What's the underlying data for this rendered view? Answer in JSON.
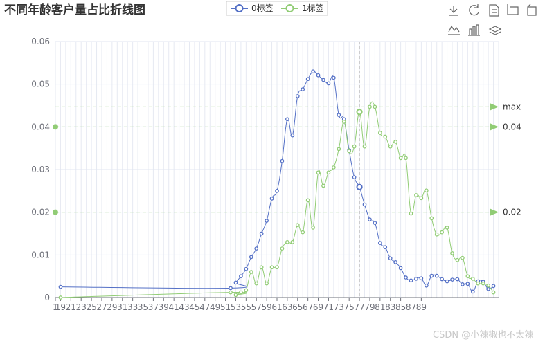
{
  "chart_data": {
    "type": "line",
    "title": "不同年龄客户量占比折线图",
    "x_tick_labels": [
      "1",
      "19",
      "21",
      "23",
      "25",
      "27",
      "29",
      "31",
      "33",
      "35",
      "37",
      "39",
      "41",
      "43",
      "45",
      "47",
      "49",
      "51",
      "53",
      "55",
      "57",
      "59",
      "61",
      "63",
      "65",
      "67",
      "69",
      "71",
      "73",
      "75",
      "77",
      "79",
      "81",
      "83",
      "85",
      "87",
      "89"
    ],
    "y_tick_labels": [
      "0",
      "0.01",
      "0.02",
      "0.03",
      "0.04",
      "0.05",
      "0.06"
    ],
    "ylim": [
      0,
      0.06
    ],
    "grid": true,
    "legend_position": "top-center",
    "series": [
      {
        "name": "0标签",
        "color": "#5470c6",
        "points": [
          [
            1,
            0.0025
          ],
          [
            34,
            0.0022
          ],
          [
            35,
            0.0035
          ],
          [
            36,
            0.005
          ],
          [
            37,
            0.0067
          ],
          [
            38,
            0.0095
          ],
          [
            39,
            0.0115
          ],
          [
            40,
            0.015
          ],
          [
            41,
            0.018
          ],
          [
            42,
            0.0232
          ],
          [
            43,
            0.025
          ],
          [
            44,
            0.032
          ],
          [
            45,
            0.0418
          ],
          [
            46,
            0.038
          ],
          [
            47,
            0.0472
          ],
          [
            48,
            0.0488
          ],
          [
            49,
            0.0512
          ],
          [
            50,
            0.053
          ],
          [
            51,
            0.0521
          ],
          [
            52,
            0.051
          ],
          [
            53,
            0.0502
          ],
          [
            54,
            0.0515
          ],
          [
            55,
            0.0428
          ],
          [
            56,
            0.0418
          ],
          [
            57,
            0.0345
          ],
          [
            58,
            0.0282
          ],
          [
            59,
            0.0259
          ],
          [
            60,
            0.0218
          ],
          [
            61,
            0.0183
          ],
          [
            62,
            0.0175
          ],
          [
            63,
            0.0128
          ],
          [
            64,
            0.0118
          ],
          [
            65,
            0.0092
          ],
          [
            66,
            0.0083
          ],
          [
            67,
            0.0069
          ],
          [
            68,
            0.0047
          ],
          [
            69,
            0.004
          ],
          [
            70,
            0.0044
          ],
          [
            71,
            0.0045
          ],
          [
            72,
            0.0028
          ],
          [
            73,
            0.0051
          ],
          [
            74,
            0.0051
          ],
          [
            75,
            0.0043
          ],
          [
            76,
            0.0038
          ],
          [
            77,
            0.0042
          ],
          [
            78,
            0.0043
          ],
          [
            79,
            0.0031
          ],
          [
            80,
            0.0032
          ],
          [
            81,
            0.0014
          ],
          [
            82,
            0.0038
          ],
          [
            83,
            0.0037
          ],
          [
            84,
            0.002
          ],
          [
            85,
            0.0027
          ]
        ]
      },
      {
        "name": "1标签",
        "color": "#91cc75",
        "points": [
          [
            1,
            0.0
          ],
          [
            34,
            0.0012
          ],
          [
            35,
            0.0006
          ],
          [
            36,
            0.0012
          ],
          [
            37,
            0.0017
          ],
          [
            38,
            0.006
          ],
          [
            39,
            0.0033
          ],
          [
            40,
            0.0071
          ],
          [
            41,
            0.0033
          ],
          [
            42,
            0.0071
          ],
          [
            43,
            0.0071
          ],
          [
            44,
            0.0115
          ],
          [
            45,
            0.013
          ],
          [
            46,
            0.013
          ],
          [
            47,
            0.017
          ],
          [
            48,
            0.0153
          ],
          [
            49,
            0.0228
          ],
          [
            50,
            0.0164
          ],
          [
            51,
            0.0293
          ],
          [
            52,
            0.0262
          ],
          [
            53,
            0.0293
          ],
          [
            54,
            0.0305
          ],
          [
            55,
            0.0348
          ],
          [
            56,
            0.0412
          ],
          [
            57,
            0.0343
          ],
          [
            58,
            0.0354
          ],
          [
            59,
            0.0435
          ],
          [
            60,
            0.0354
          ],
          [
            61,
            0.0447
          ],
          [
            62,
            0.0447
          ],
          [
            63,
            0.0386
          ],
          [
            64,
            0.0377
          ],
          [
            65,
            0.0354
          ],
          [
            66,
            0.0365
          ],
          [
            67,
            0.0327
          ],
          [
            68,
            0.0327
          ],
          [
            69,
            0.0197
          ],
          [
            70,
            0.024
          ],
          [
            71,
            0.0233
          ],
          [
            72,
            0.0251
          ],
          [
            73,
            0.0186
          ],
          [
            74,
            0.0148
          ],
          [
            75,
            0.0153
          ],
          [
            76,
            0.0164
          ],
          [
            77,
            0.0104
          ],
          [
            78,
            0.0088
          ],
          [
            79,
            0.0093
          ],
          [
            80,
            0.005
          ],
          [
            81,
            0.0044
          ],
          [
            82,
            0.0033
          ],
          [
            83,
            0.0033
          ],
          [
            84,
            0.0028
          ],
          [
            85,
            0.0012
          ]
        ]
      }
    ],
    "mark_lines": [
      {
        "series": "1标签",
        "value": 0.0447,
        "label": "max"
      },
      {
        "series": "1标签",
        "value": 0.04,
        "label": "0.04"
      },
      {
        "series": "1标签",
        "value": 0.02,
        "label": "0.02"
      }
    ],
    "crosshair_at_point": 59
  },
  "watermark": "CSDN @小辣椒也不太辣",
  "toolbox_icons": [
    "download-icon",
    "refresh-icon",
    "data-view-icon",
    "zoom-icon",
    "zoom-reset-icon",
    "line-chart-icon",
    "bar-chart-icon",
    "stack-icon"
  ]
}
